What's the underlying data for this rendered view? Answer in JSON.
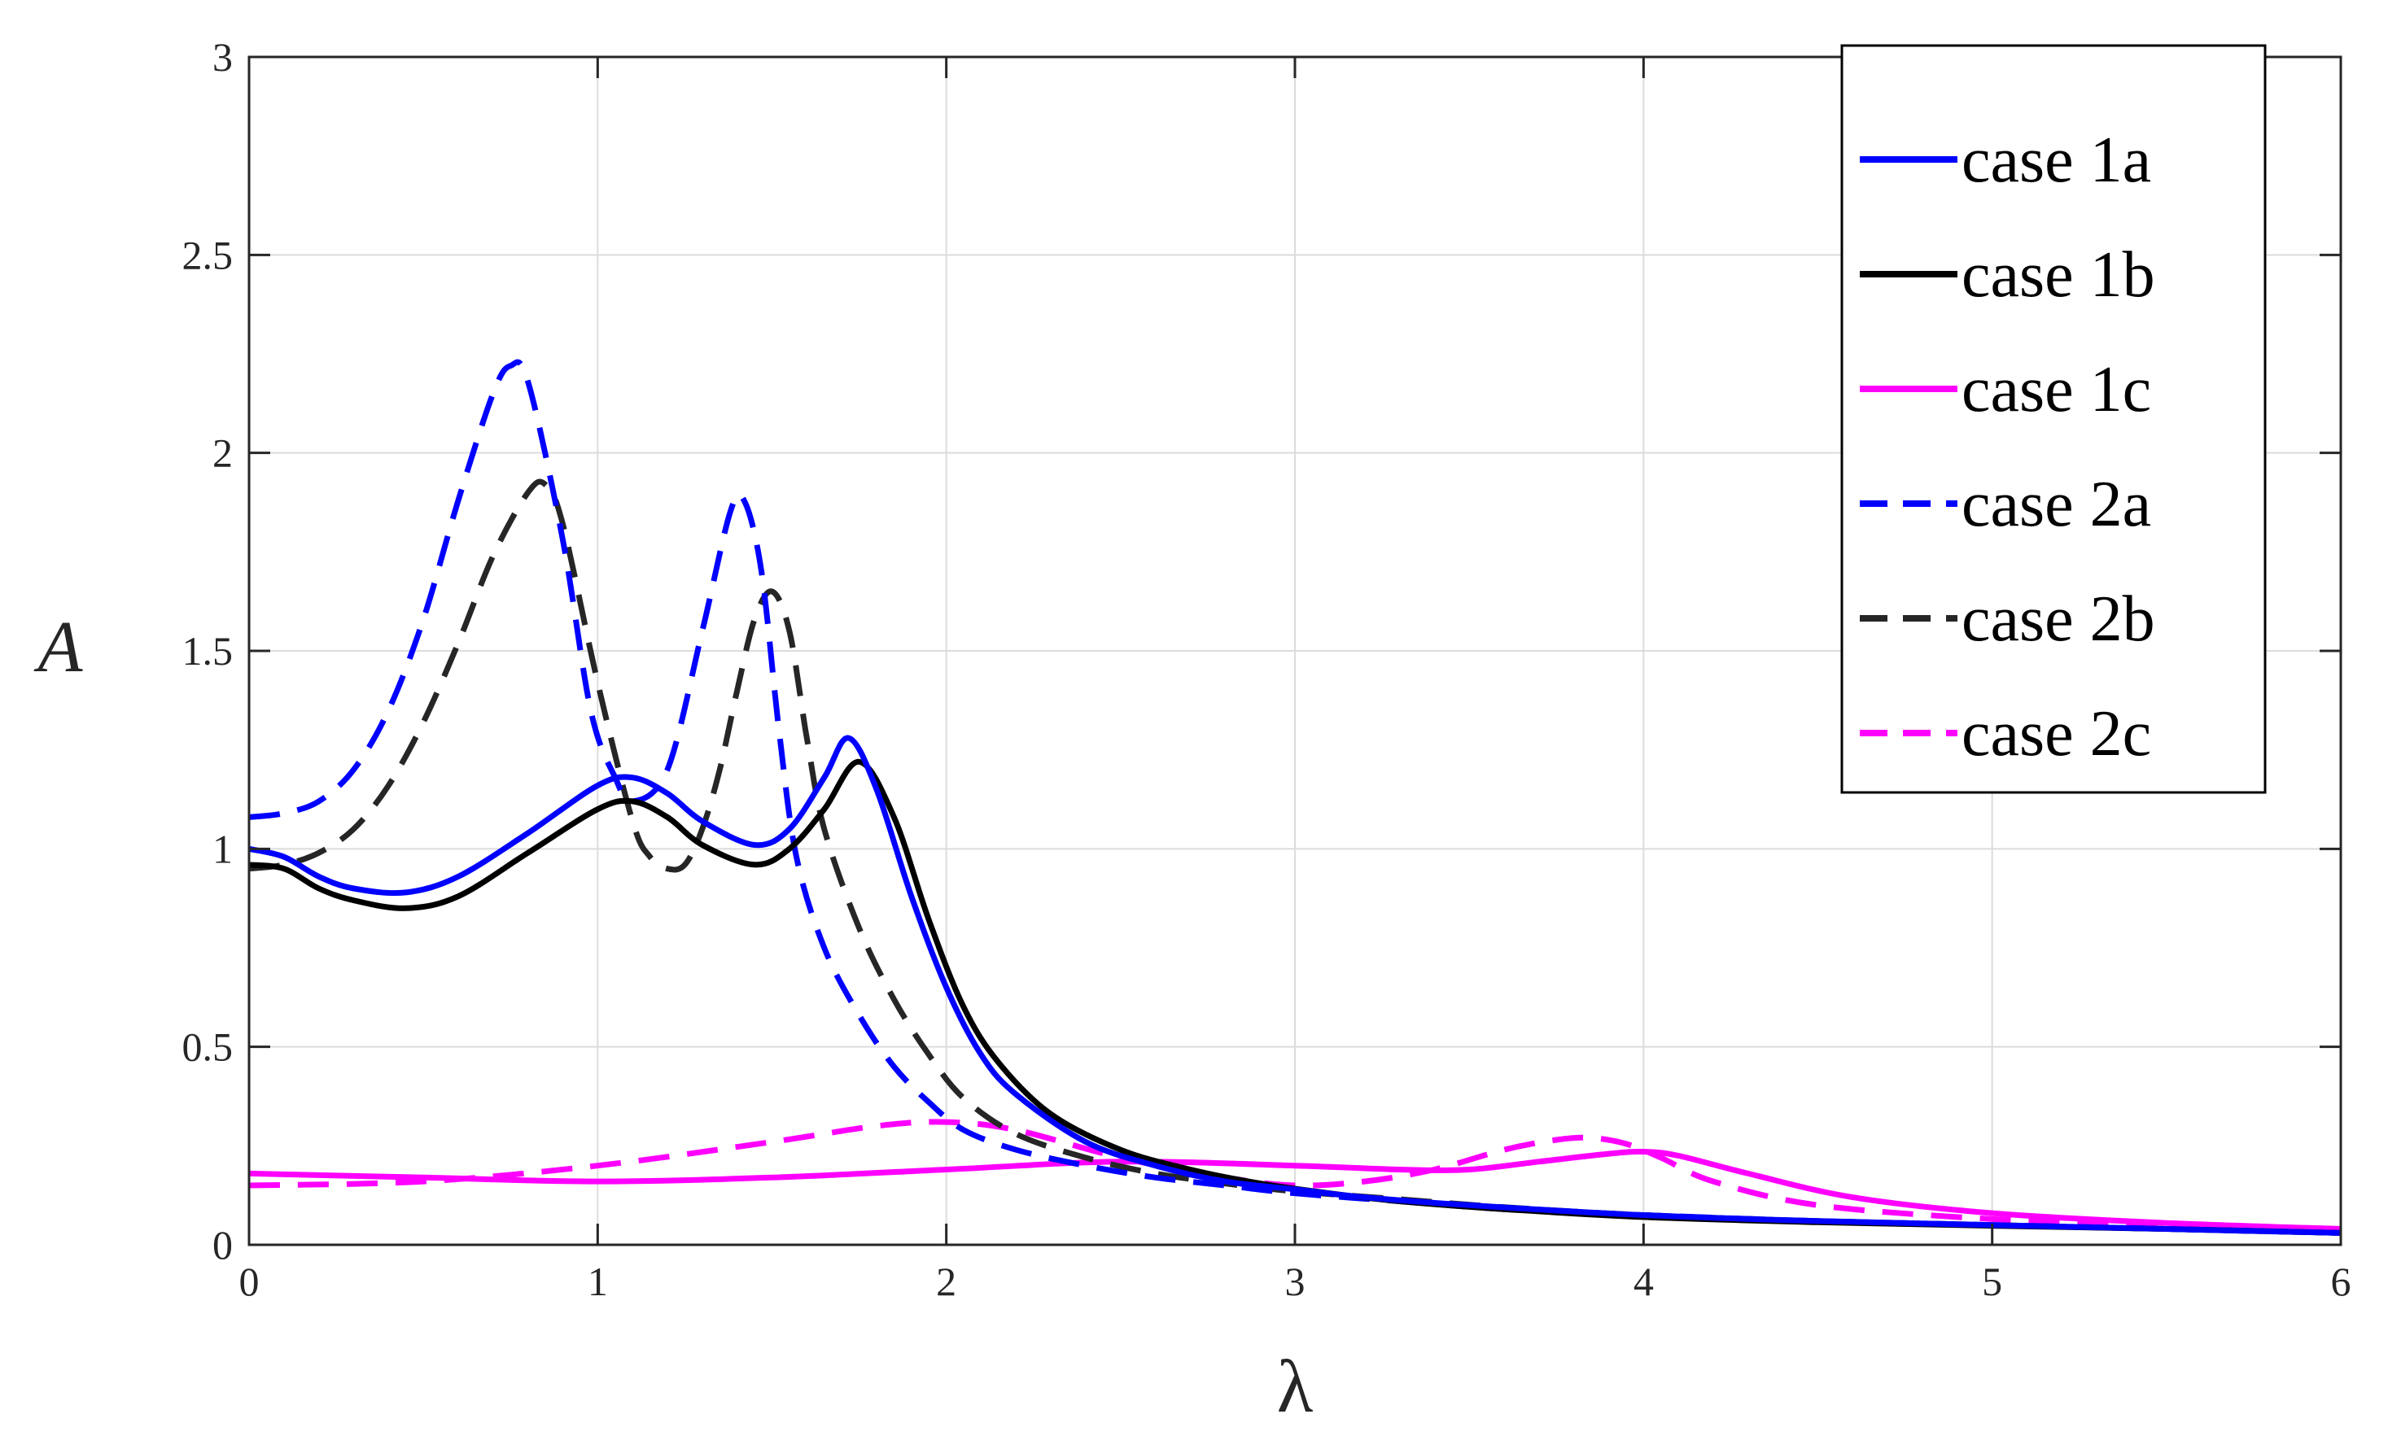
{
  "chart_data": {
    "type": "line",
    "title": "",
    "xlabel": "λ",
    "ylabel": "A",
    "xlim": [
      0,
      6
    ],
    "ylim": [
      0,
      3
    ],
    "xticks": [
      "0",
      "1",
      "2",
      "3",
      "4",
      "5",
      "6"
    ],
    "yticks": [
      "0",
      "0.5",
      "1",
      "1.5",
      "2",
      "2.5",
      "3"
    ],
    "grid": true,
    "legend_position": "top-right",
    "series": [
      {
        "name": "case 1a",
        "color": "#0000ff",
        "dash": "solid",
        "x": [
          0,
          0.1,
          0.2,
          0.3,
          0.45,
          0.6,
          0.8,
          1.0,
          1.1,
          1.2,
          1.3,
          1.45,
          1.55,
          1.65,
          1.72,
          1.8,
          1.9,
          2.0,
          2.1,
          2.2,
          2.4,
          2.6,
          2.8,
          3.0,
          3.2,
          3.5,
          4.0,
          4.5,
          5.0,
          5.5,
          6.0
        ],
        "y": [
          1.0,
          0.98,
          0.93,
          0.9,
          0.89,
          0.93,
          1.04,
          1.16,
          1.18,
          1.14,
          1.07,
          1.01,
          1.05,
          1.18,
          1.28,
          1.15,
          0.88,
          0.65,
          0.48,
          0.38,
          0.26,
          0.2,
          0.16,
          0.14,
          0.12,
          0.1,
          0.075,
          0.06,
          0.05,
          0.04,
          0.03
        ]
      },
      {
        "name": "case 1b",
        "color": "#000000",
        "dash": "solid",
        "x": [
          0,
          0.1,
          0.2,
          0.3,
          0.45,
          0.6,
          0.8,
          1.0,
          1.1,
          1.2,
          1.3,
          1.45,
          1.55,
          1.65,
          1.75,
          1.85,
          1.95,
          2.05,
          2.15,
          2.3,
          2.5,
          2.7,
          2.9,
          3.1,
          3.3,
          3.6,
          4.0,
          4.5,
          5.0,
          5.5,
          6.0
        ],
        "y": [
          0.96,
          0.95,
          0.9,
          0.87,
          0.85,
          0.88,
          0.99,
          1.1,
          1.12,
          1.08,
          1.01,
          0.96,
          1.0,
          1.1,
          1.22,
          1.08,
          0.82,
          0.6,
          0.46,
          0.33,
          0.24,
          0.19,
          0.155,
          0.13,
          0.11,
          0.09,
          0.07,
          0.057,
          0.048,
          0.04,
          0.03
        ]
      },
      {
        "name": "case 1c",
        "color": "#ff00ff",
        "dash": "solid",
        "x": [
          0,
          0.5,
          1.0,
          1.5,
          2.0,
          2.5,
          3.0,
          3.3,
          3.5,
          3.7,
          3.9,
          4.0,
          4.1,
          4.3,
          4.6,
          5.0,
          5.5,
          6.0
        ],
        "y": [
          0.18,
          0.17,
          0.16,
          0.17,
          0.19,
          0.21,
          0.2,
          0.19,
          0.19,
          0.21,
          0.23,
          0.235,
          0.225,
          0.18,
          0.12,
          0.08,
          0.055,
          0.04
        ]
      },
      {
        "name": "case 2a",
        "color": "#0000ff",
        "dash": "dashed",
        "x": [
          0,
          0.1,
          0.2,
          0.3,
          0.4,
          0.5,
          0.6,
          0.7,
          0.75,
          0.8,
          0.9,
          0.98,
          1.05,
          1.1,
          1.2,
          1.3,
          1.38,
          1.42,
          1.47,
          1.52,
          1.57,
          1.65,
          1.75,
          1.85,
          1.95,
          2.05,
          2.2,
          2.4,
          2.6,
          2.8,
          3.0,
          3.3,
          3.6,
          4.0,
          4.5,
          5.0,
          5.5,
          6.0
        ],
        "y": [
          1.08,
          1.09,
          1.12,
          1.2,
          1.35,
          1.58,
          1.88,
          2.15,
          2.22,
          2.18,
          1.78,
          1.35,
          1.18,
          1.12,
          1.2,
          1.55,
          1.85,
          1.88,
          1.7,
          1.3,
          0.98,
          0.75,
          0.58,
          0.45,
          0.36,
          0.29,
          0.24,
          0.2,
          0.17,
          0.15,
          0.13,
          0.11,
          0.09,
          0.075,
          0.06,
          0.05,
          0.04,
          0.03
        ]
      },
      {
        "name": "case 2b",
        "color": "#262626",
        "dash": "dashed",
        "x": [
          0,
          0.1,
          0.2,
          0.3,
          0.4,
          0.5,
          0.6,
          0.7,
          0.8,
          0.85,
          0.9,
          1.0,
          1.1,
          1.15,
          1.2,
          1.25,
          1.3,
          1.35,
          1.4,
          1.45,
          1.5,
          1.55,
          1.6,
          1.65,
          1.75,
          1.85,
          1.95,
          2.05,
          2.2,
          2.4,
          2.6,
          2.8,
          3.0,
          3.3,
          3.6,
          4.0,
          4.5,
          5.0,
          5.5,
          6.0
        ],
        "y": [
          0.95,
          0.96,
          0.99,
          1.05,
          1.16,
          1.32,
          1.52,
          1.74,
          1.9,
          1.92,
          1.82,
          1.42,
          1.07,
          0.98,
          0.95,
          0.96,
          1.05,
          1.2,
          1.4,
          1.58,
          1.65,
          1.55,
          1.28,
          1.05,
          0.8,
          0.62,
          0.48,
          0.37,
          0.28,
          0.22,
          0.18,
          0.155,
          0.135,
          0.115,
          0.095,
          0.075,
          0.06,
          0.05,
          0.04,
          0.03
        ]
      },
      {
        "name": "case 2c",
        "color": "#ff00ff",
        "dash": "dashed",
        "x": [
          0,
          0.5,
          1.0,
          1.5,
          1.8,
          2.0,
          2.2,
          2.5,
          2.8,
          3.0,
          3.2,
          3.4,
          3.6,
          3.75,
          3.85,
          3.95,
          4.05,
          4.2,
          4.5,
          5.0,
          5.5,
          6.0
        ],
        "y": [
          0.15,
          0.16,
          0.2,
          0.26,
          0.3,
          0.31,
          0.29,
          0.22,
          0.17,
          0.15,
          0.16,
          0.19,
          0.24,
          0.265,
          0.27,
          0.255,
          0.22,
          0.16,
          0.1,
          0.065,
          0.05,
          0.035
        ]
      }
    ]
  }
}
